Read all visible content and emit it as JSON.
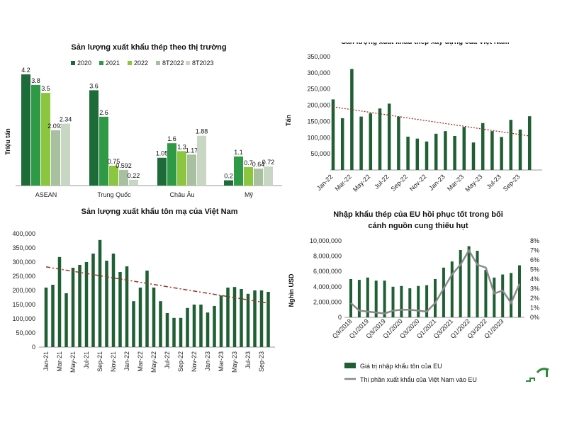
{
  "colors": {
    "c2020": "#1e6b3a",
    "c2021": "#2e9a45",
    "c2022": "#8cc63f",
    "c8T2022": "#a8bfa0",
    "c8T2023": "#c8d6c4",
    "bar_dark": "#1f5f33",
    "trend_red": "#a0302a",
    "line_gray": "#8a8a8a"
  },
  "chart_data": [
    {
      "type": "bar",
      "title": "Sản lượng xuất khẩu thép theo thị trường",
      "ylabel": "Triệu tấn",
      "legend_position": "top",
      "categories": [
        "ASEAN",
        "Trung Quốc",
        "Châu Âu",
        "Mỹ"
      ],
      "series": [
        {
          "name": "2020",
          "values": [
            4.2,
            3.6,
            1.05,
            0.2
          ]
        },
        {
          "name": "2021",
          "values": [
            3.8,
            2.6,
            1.6,
            1.1
          ]
        },
        {
          "name": "2022",
          "values": [
            3.5,
            0.75,
            1.3,
            0.7
          ]
        },
        {
          "name": "8T2022",
          "values": [
            2.092,
            0.592,
            1.17,
            0.64
          ]
        },
        {
          "name": "8T2023",
          "values": [
            2.34,
            0.22,
            1.88,
            0.72
          ]
        }
      ],
      "ylim": [
        0,
        4.6
      ]
    },
    {
      "type": "bar",
      "title": "Sản lượng xuất khẩu thép xây dựng của Việt Nam",
      "ylabel": "Tấn",
      "x": [
        "Jan-22",
        "Feb-22",
        "Mar-22",
        "Apr-22",
        "May-22",
        "Jun-22",
        "Jul-22",
        "Aug-22",
        "Sep-22",
        "Oct-22",
        "Nov-22",
        "Dec-22",
        "Jan-23",
        "Feb-23",
        "Mar-23",
        "Apr-23",
        "May-23",
        "Jun-23",
        "Jul-23",
        "Aug-23",
        "Sep-23",
        "Oct-23"
      ],
      "x_tick_labels": [
        "Jan-22",
        "Mar-22",
        "May-22",
        "Jul-22",
        "Sep-22",
        "Nov-22",
        "Jan-23",
        "Mar-23",
        "May-23",
        "Jul-23",
        "Sep-23"
      ],
      "values": [
        218000,
        160000,
        312000,
        165000,
        175000,
        190000,
        205000,
        165000,
        103000,
        97000,
        88000,
        112000,
        120000,
        105000,
        133000,
        85000,
        145000,
        120000,
        102000,
        155000,
        125000,
        166000
      ],
      "y_ticks": [
        "50,000",
        "100,000",
        "150,000",
        "200,000",
        "250,000",
        "300,000",
        "350,000"
      ],
      "ylim": [
        0,
        350000
      ],
      "trendline": true
    },
    {
      "type": "bar",
      "title": "Sản lượng xuất khẩu tôn mạ của Việt Nam",
      "x": [
        "Jan-21",
        "Feb-21",
        "Mar-21",
        "Apr-21",
        "May-21",
        "Jun-21",
        "Jul-21",
        "Aug-21",
        "Sep-21",
        "Oct-21",
        "Nov-21",
        "Dec-21",
        "Jan-22",
        "Feb-22",
        "Mar-22",
        "Apr-22",
        "May-22",
        "Jun-22",
        "Jul-22",
        "Aug-22",
        "Sep-22",
        "Oct-22",
        "Nov-22",
        "Dec-22",
        "Jan-23",
        "Feb-23",
        "Mar-23",
        "Apr-23",
        "May-23",
        "Jun-23",
        "Jul-23",
        "Aug-23",
        "Sep-23",
        "Oct-23"
      ],
      "x_tick_labels": [
        "Jan-21",
        "Mar-21",
        "May-21",
        "Jul-21",
        "Sep-21",
        "Nov-21",
        "Jan-22",
        "Mar-22",
        "May-22",
        "Jul-22",
        "Sep-22",
        "Nov-22",
        "Jan-23",
        "Mar-23",
        "May-23",
        "Jul-23",
        "Sep-23"
      ],
      "values": [
        210000,
        220000,
        318000,
        190000,
        280000,
        290000,
        300000,
        330000,
        378000,
        305000,
        330000,
        265000,
        285000,
        162000,
        210000,
        270000,
        210000,
        162000,
        120000,
        103000,
        103000,
        138000,
        150000,
        150000,
        122000,
        145000,
        182000,
        210000,
        212000,
        205000,
        188000,
        200000,
        200000,
        195000
      ],
      "y_ticks": [
        "0",
        "50,000",
        "100,000",
        "150,000",
        "200,000",
        "250,000",
        "300,000",
        "350,000",
        "400,000"
      ],
      "ylim": [
        0,
        400000
      ],
      "trendline": true
    },
    {
      "type": "bar",
      "title": "Nhập khẩu thép của EU hồi phục tốt trong bối cảnh nguồn cung thiếu hụt",
      "ylabel": "Nghìn USD",
      "x": [
        "Q3/2018",
        "Q4/2018",
        "Q1/2019",
        "Q2/2019",
        "Q3/2019",
        "Q4/2019",
        "Q1/2020",
        "Q2/2020",
        "Q3/2020",
        "Q4/2020",
        "Q1/2021",
        "Q2/2021",
        "Q3/2021",
        "Q4/2021",
        "Q1/2022",
        "Q2/2022",
        "Q3/2022",
        "Q4/2022",
        "Q1/2023",
        "Q2/2023",
        "Q3/2023"
      ],
      "x_tick_labels": [
        "Q3/2018",
        "Q1/2019",
        "Q3/2019",
        "Q1/2020",
        "Q3/2020",
        "Q1/2021",
        "Q3/2021",
        "Q1/2022",
        "Q3/2022",
        "Q1/2023"
      ],
      "series": [
        {
          "name": "Giá trị nhập khẩu tôn của EU",
          "axis": "left",
          "values": [
            5000000,
            4900000,
            5200000,
            4800000,
            4800000,
            4000000,
            4100000,
            3800000,
            4100000,
            4200000,
            5000000,
            6500000,
            7300000,
            8800000,
            9300000,
            8700000,
            6200000,
            5200000,
            5600000,
            5800000,
            6800000
          ]
        },
        {
          "name": "Thị phần xuất khẩu của Việt Nam vào EU",
          "axis": "right",
          "values": [
            1.5,
            0.7,
            0.6,
            0.5,
            0.4,
            0.7,
            0.8,
            0.8,
            0.7,
            0.6,
            1.5,
            3.0,
            4.5,
            5.5,
            7.0,
            5.5,
            5.2,
            2.5,
            2.8,
            1.5,
            3.5
          ]
        }
      ],
      "y_ticks": [
        "0",
        "2,000,000",
        "4,000,000",
        "6,000,000",
        "8,000,000",
        "10,000,000"
      ],
      "y2_ticks": [
        "0%",
        "1%",
        "2%",
        "3%",
        "4%",
        "5%",
        "6%",
        "7%",
        "8%"
      ],
      "ylim": [
        0,
        10000000
      ],
      "y2lim": [
        0,
        8
      ],
      "legend_position": "bottom"
    }
  ]
}
